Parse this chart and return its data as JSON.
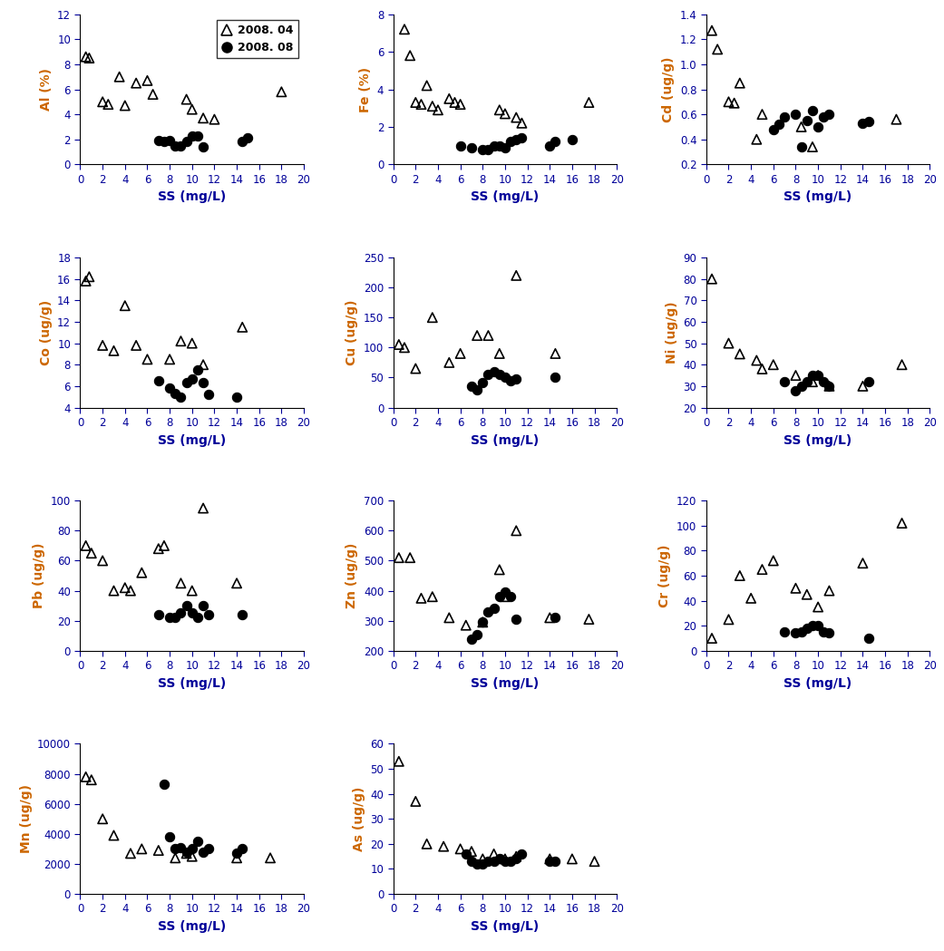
{
  "subplots": [
    {
      "ylabel": "Al (%)",
      "ylim": [
        0,
        12
      ],
      "yticks": [
        0,
        2,
        4,
        6,
        8,
        10,
        12
      ],
      "tri_x": [
        0.5,
        0.8,
        2.0,
        2.5,
        3.5,
        4.0,
        5.0,
        6.0,
        6.5,
        9.5,
        10.0,
        11.0,
        12.0,
        18.0
      ],
      "tri_y": [
        8.6,
        8.5,
        5.0,
        4.8,
        7.0,
        4.7,
        6.5,
        6.7,
        5.6,
        5.2,
        4.4,
        3.7,
        3.6,
        5.8
      ],
      "dot_x": [
        7.0,
        7.5,
        8.0,
        8.5,
        9.0,
        9.5,
        10.0,
        10.5,
        11.0,
        14.5,
        15.0
      ],
      "dot_y": [
        1.9,
        1.8,
        1.9,
        1.5,
        1.5,
        1.8,
        2.3,
        2.3,
        1.4,
        1.8,
        2.1
      ]
    },
    {
      "ylabel": "Fe (%)",
      "ylim": [
        0,
        8
      ],
      "yticks": [
        0,
        2,
        4,
        6,
        8
      ],
      "tri_x": [
        1.0,
        1.5,
        2.0,
        2.5,
        3.0,
        3.5,
        4.0,
        5.0,
        5.5,
        6.0,
        9.5,
        10.0,
        11.0,
        11.5,
        17.5
      ],
      "tri_y": [
        7.2,
        5.8,
        3.3,
        3.2,
        4.2,
        3.1,
        2.9,
        3.5,
        3.3,
        3.2,
        2.9,
        2.7,
        2.5,
        2.2,
        3.3
      ],
      "dot_x": [
        6.0,
        7.0,
        8.0,
        8.5,
        9.0,
        9.5,
        10.0,
        10.5,
        11.0,
        11.5,
        14.0,
        14.5,
        16.0
      ],
      "dot_y": [
        1.0,
        0.9,
        0.8,
        0.8,
        1.0,
        1.0,
        0.9,
        1.2,
        1.3,
        1.4,
        1.0,
        1.2,
        1.3
      ]
    },
    {
      "ylabel": "Cd (ug/g)",
      "ylim": [
        0.2,
        1.4
      ],
      "yticks": [
        0.2,
        0.4,
        0.6,
        0.8,
        1.0,
        1.2,
        1.4
      ],
      "tri_x": [
        0.5,
        1.0,
        2.0,
        2.5,
        3.0,
        4.5,
        5.0,
        8.5,
        9.5,
        17.0
      ],
      "tri_y": [
        1.27,
        1.12,
        0.7,
        0.69,
        0.85,
        0.4,
        0.6,
        0.5,
        0.34,
        0.56
      ],
      "dot_x": [
        6.0,
        6.5,
        7.0,
        8.0,
        8.5,
        9.0,
        9.5,
        10.0,
        10.5,
        11.0,
        14.0,
        14.5
      ],
      "dot_y": [
        0.48,
        0.52,
        0.58,
        0.6,
        0.34,
        0.55,
        0.63,
        0.5,
        0.58,
        0.6,
        0.53,
        0.54
      ]
    },
    {
      "ylabel": "Co (ug/g)",
      "ylim": [
        4,
        18
      ],
      "yticks": [
        4,
        6,
        8,
        10,
        12,
        14,
        16,
        18
      ],
      "tri_x": [
        0.5,
        0.8,
        2.0,
        3.0,
        4.0,
        5.0,
        6.0,
        8.0,
        9.0,
        10.0,
        11.0,
        14.5
      ],
      "tri_y": [
        15.8,
        16.2,
        9.8,
        9.3,
        13.5,
        9.8,
        8.5,
        8.5,
        10.2,
        10.0,
        8.0,
        11.5
      ],
      "dot_x": [
        7.0,
        8.0,
        8.5,
        9.0,
        9.5,
        10.0,
        10.5,
        11.0,
        11.5,
        14.0
      ],
      "dot_y": [
        6.5,
        5.8,
        5.3,
        5.0,
        6.3,
        6.7,
        7.5,
        6.3,
        5.2,
        5.0
      ]
    },
    {
      "ylabel": "Cu (ug/g)",
      "ylim": [
        0,
        250
      ],
      "yticks": [
        0,
        50,
        100,
        150,
        200,
        250
      ],
      "tri_x": [
        0.5,
        1.0,
        2.0,
        3.5,
        5.0,
        6.0,
        7.5,
        8.5,
        9.5,
        11.0,
        14.5
      ],
      "tri_y": [
        105,
        100,
        65,
        150,
        75,
        90,
        120,
        120,
        90,
        220,
        90
      ],
      "dot_x": [
        7.0,
        7.5,
        8.0,
        8.5,
        9.0,
        9.5,
        10.0,
        10.5,
        11.0,
        14.5
      ],
      "dot_y": [
        35,
        30,
        42,
        55,
        60,
        55,
        50,
        45,
        48,
        50
      ]
    },
    {
      "ylabel": "Ni (ug/g)",
      "ylim": [
        20,
        90
      ],
      "yticks": [
        20,
        30,
        40,
        50,
        60,
        70,
        80,
        90
      ],
      "tri_x": [
        0.5,
        2.0,
        3.0,
        4.5,
        5.0,
        6.0,
        8.0,
        9.5,
        10.0,
        11.0,
        14.0,
        17.5
      ],
      "tri_y": [
        80,
        50,
        45,
        42,
        38,
        40,
        35,
        32,
        35,
        30,
        30,
        40
      ],
      "dot_x": [
        7.0,
        8.0,
        8.5,
        9.0,
        9.5,
        10.0,
        10.5,
        11.0,
        14.5
      ],
      "dot_y": [
        32,
        28,
        30,
        32,
        35,
        35,
        32,
        30,
        32
      ]
    },
    {
      "ylabel": "Pb (ug/g)",
      "ylim": [
        0,
        100
      ],
      "yticks": [
        0,
        20,
        40,
        60,
        80,
        100
      ],
      "tri_x": [
        0.5,
        1.0,
        2.0,
        3.0,
        4.0,
        4.5,
        5.5,
        7.0,
        7.5,
        9.0,
        10.0,
        11.0,
        14.0
      ],
      "tri_y": [
        70,
        65,
        60,
        40,
        42,
        40,
        52,
        68,
        70,
        45,
        40,
        95,
        45
      ],
      "dot_x": [
        7.0,
        8.0,
        8.5,
        9.0,
        9.5,
        10.0,
        10.5,
        11.0,
        11.5,
        14.5
      ],
      "dot_y": [
        24,
        22,
        22,
        25,
        30,
        25,
        22,
        30,
        24,
        24
      ]
    },
    {
      "ylabel": "Zn (ug/g)",
      "ylim": [
        200,
        700
      ],
      "yticks": [
        200,
        300,
        400,
        500,
        600,
        700
      ],
      "tri_x": [
        0.5,
        1.5,
        2.5,
        3.5,
        5.0,
        6.5,
        8.0,
        9.5,
        10.0,
        11.0,
        14.0,
        17.5
      ],
      "tri_y": [
        510,
        510,
        375,
        380,
        310,
        285,
        295,
        470,
        380,
        600,
        310,
        305
      ],
      "dot_x": [
        7.0,
        7.5,
        8.0,
        8.5,
        9.0,
        9.5,
        10.0,
        10.5,
        11.0,
        14.5
      ],
      "dot_y": [
        240,
        255,
        295,
        330,
        340,
        380,
        395,
        380,
        305,
        310
      ]
    },
    {
      "ylabel": "Cr (ug/g)",
      "ylim": [
        0,
        120
      ],
      "yticks": [
        0,
        20,
        40,
        60,
        80,
        100,
        120
      ],
      "tri_x": [
        0.5,
        2.0,
        3.0,
        4.0,
        5.0,
        6.0,
        8.0,
        9.0,
        10.0,
        11.0,
        14.0,
        17.5
      ],
      "tri_y": [
        10,
        25,
        60,
        42,
        65,
        72,
        50,
        45,
        35,
        48,
        70,
        102
      ],
      "dot_x": [
        7.0,
        8.0,
        8.5,
        9.0,
        9.5,
        10.0,
        10.5,
        11.0,
        14.5
      ],
      "dot_y": [
        15,
        14,
        15,
        18,
        20,
        20,
        15,
        14,
        10
      ]
    },
    {
      "ylabel": "Mn (ug/g)",
      "ylim": [
        0,
        10000
      ],
      "yticks": [
        0,
        2000,
        4000,
        6000,
        8000,
        10000
      ],
      "tri_x": [
        0.5,
        1.0,
        2.0,
        3.0,
        4.5,
        5.5,
        7.0,
        8.5,
        9.5,
        10.0,
        14.0,
        17.0
      ],
      "tri_y": [
        7800,
        7600,
        5000,
        3900,
        2700,
        3000,
        2900,
        2400,
        2700,
        2500,
        2400,
        2400
      ],
      "dot_x": [
        7.5,
        8.0,
        8.5,
        9.0,
        9.5,
        10.0,
        10.5,
        11.0,
        11.5,
        14.0,
        14.5
      ],
      "dot_y": [
        7300,
        3800,
        3000,
        3100,
        2800,
        3000,
        3500,
        2800,
        3000,
        2700,
        3000
      ]
    },
    {
      "ylabel": "As (ug/g)",
      "ylim": [
        0,
        60
      ],
      "yticks": [
        0,
        10,
        20,
        30,
        40,
        50,
        60
      ],
      "tri_x": [
        0.5,
        2.0,
        3.0,
        4.5,
        6.0,
        7.0,
        8.0,
        9.0,
        10.0,
        11.0,
        14.0,
        16.0,
        18.0
      ],
      "tri_y": [
        53,
        37,
        20,
        19,
        18,
        17,
        14,
        16,
        14,
        15,
        14,
        14,
        13
      ],
      "dot_x": [
        6.5,
        7.0,
        7.5,
        8.0,
        8.5,
        9.0,
        9.5,
        10.0,
        10.5,
        11.0,
        11.5,
        14.0,
        14.5
      ],
      "dot_y": [
        16,
        13,
        12,
        12,
        13,
        13,
        14,
        13,
        13,
        14,
        16,
        13,
        13
      ]
    }
  ],
  "xlabel": "SS (mg/L)",
  "xlim": [
    0,
    20
  ],
  "xticks": [
    0,
    2,
    4,
    6,
    8,
    10,
    12,
    14,
    16,
    18,
    20
  ],
  "ylabel_color": "#CC6600",
  "xlabel_color": "#000099",
  "tick_label_color": "#000099",
  "legend_labels": [
    "2008. 04",
    "2008. 08"
  ],
  "marker_size_tri": 55,
  "marker_size_dot": 55,
  "tri_lw": 1.2
}
